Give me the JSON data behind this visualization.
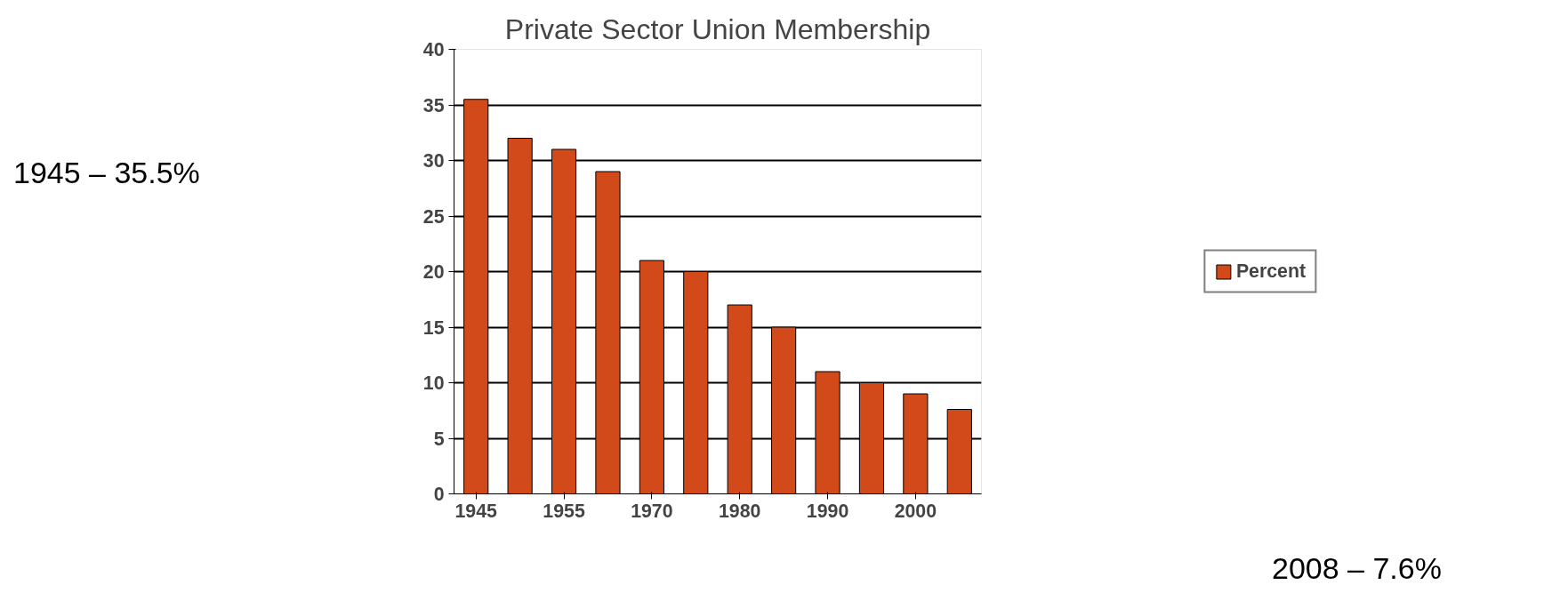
{
  "chart_data": {
    "type": "bar",
    "title": "Private Sector Union Membership",
    "categories": [
      "1945",
      null,
      "1955",
      null,
      "1970",
      null,
      "1980",
      null,
      "1990",
      null,
      "2000",
      null
    ],
    "series": [
      {
        "name": "Percent",
        "color": "#d24a1a",
        "values": [
          35.5,
          32,
          31,
          29,
          21,
          20,
          17,
          15,
          11,
          10,
          9,
          7.6
        ]
      }
    ],
    "ylim": [
      0,
      40
    ],
    "yticks": [
      0,
      5,
      10,
      15,
      20,
      25,
      30,
      35,
      40
    ],
    "grid": "y",
    "legend": "right",
    "annotations": [
      "1945 – 35.5%",
      "2008 – 7.6%"
    ]
  }
}
